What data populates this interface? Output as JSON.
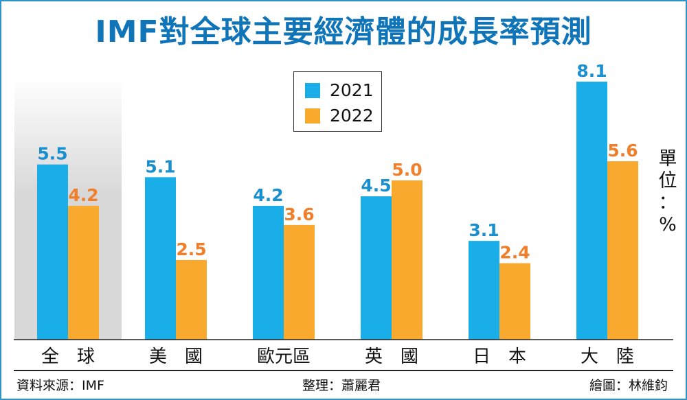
{
  "title": "IMF對全球主要經濟體的成長率預測",
  "unit_label": [
    "單",
    "位",
    "：",
    "%"
  ],
  "footer": {
    "source": "資料來源：IMF",
    "editor": "整理：蕭麗君",
    "artist": "繪圖：林維鈞"
  },
  "colors": {
    "series_2021": "#1aaee8",
    "series_2022": "#f8a92e",
    "label_2021": "#1a8fcf",
    "label_2022": "#f07f2b",
    "title": "#0f74b8",
    "highlight": "#d8d8d8"
  },
  "chart_data": {
    "type": "bar",
    "title": "IMF對全球主要經濟體的成長率預測",
    "categories": [
      "全　球",
      "美　國",
      "歐元區",
      "英　國",
      "日　本",
      "大　陸"
    ],
    "series": [
      {
        "name": "2021",
        "values": [
          5.5,
          5.1,
          4.2,
          4.5,
          3.1,
          8.1
        ]
      },
      {
        "name": "2022",
        "values": [
          4.2,
          2.5,
          3.6,
          5.0,
          2.4,
          5.6
        ]
      }
    ],
    "value_labels": [
      [
        "5.5",
        "5.1",
        "4.2",
        "4.5",
        "3.1",
        "8.1"
      ],
      [
        "4.2",
        "2.5",
        "3.6",
        "5.0",
        "2.4",
        "5.6"
      ]
    ],
    "ylim": [
      0,
      8.1
    ],
    "grid": false,
    "legend_position": "top-center",
    "highlighted_category": "全　球",
    "ylabel": "單位：%"
  }
}
